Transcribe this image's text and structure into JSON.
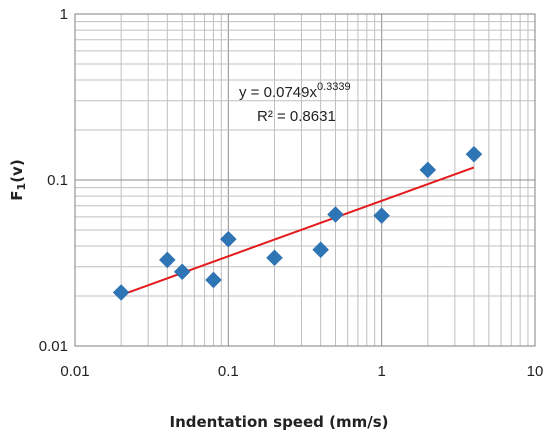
{
  "chart_data": {
    "type": "scatter",
    "title": "",
    "xlabel": "Indentation speed  (mm/s)",
    "ylabel_main": "F",
    "ylabel_sub": "1",
    "ylabel_tail": "(v)",
    "x_scale": "log",
    "y_scale": "log",
    "xlim": [
      0.01,
      10
    ],
    "ylim": [
      0.01,
      1
    ],
    "x_ticks": [
      "0.01",
      "0.1",
      "1",
      "10"
    ],
    "y_ticks": [
      "0.01",
      "0.1",
      "1"
    ],
    "grid": true,
    "legend": "none",
    "marker_color": "#2e75b6",
    "trend_color": "#e41a1c",
    "points": [
      {
        "x": 0.02,
        "y": 0.021
      },
      {
        "x": 0.04,
        "y": 0.033
      },
      {
        "x": 0.05,
        "y": 0.028
      },
      {
        "x": 0.08,
        "y": 0.025
      },
      {
        "x": 0.1,
        "y": 0.044
      },
      {
        "x": 0.2,
        "y": 0.034
      },
      {
        "x": 0.4,
        "y": 0.038
      },
      {
        "x": 0.5,
        "y": 0.062
      },
      {
        "x": 1,
        "y": 0.061
      },
      {
        "x": 2,
        "y": 0.115
      },
      {
        "x": 4,
        "y": 0.143
      }
    ],
    "trendline": {
      "type": "power",
      "a": 0.0749,
      "b": 0.3339,
      "x_range": [
        0.02,
        4
      ],
      "equation_base": "y = 0.0749x",
      "equation_exp": "0.3339",
      "r2_text": "R² = 0.8631"
    }
  }
}
